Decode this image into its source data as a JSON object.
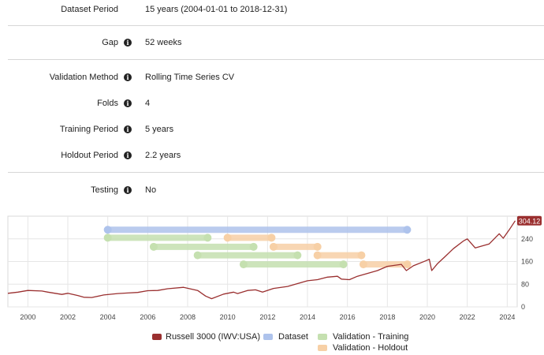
{
  "settings": {
    "dataset_period": {
      "label": "Dataset Period",
      "value": "15 years (2004-01-01 to 2018-12-31)"
    },
    "gap": {
      "label": "Gap",
      "value": "52 weeks"
    },
    "validation_method": {
      "label": "Validation Method",
      "value": "Rolling Time Series CV"
    },
    "folds": {
      "label": "Folds",
      "value": "4"
    },
    "training_period": {
      "label": "Training Period",
      "value": "5 years"
    },
    "holdout_period": {
      "label": "Holdout Period",
      "value": "2.2 years"
    },
    "testing": {
      "label": "Testing",
      "value": "No"
    }
  },
  "icons": {
    "info_glyph": "i"
  },
  "colors": {
    "price_line": "#9a2f2f",
    "dataset_bar": "#aec3ec",
    "training_bar": "#c5e0b0",
    "holdout_bar": "#f7d0a6"
  },
  "chart_data": {
    "type": "line",
    "title": "",
    "xlabel": "",
    "ylabel": "",
    "xlim": [
      1999.0,
      2024.5
    ],
    "ylim": [
      0,
      320
    ],
    "x_ticks": [
      "2000",
      "2002",
      "2004",
      "2006",
      "2008",
      "2010",
      "2012",
      "2014",
      "2016",
      "2018",
      "2020",
      "2022",
      "2024"
    ],
    "y_ticks": [
      "0",
      "80",
      "160",
      "240"
    ],
    "last_value_label": "304.12",
    "series": [
      {
        "name": "Russell 3000 (IWV:USA)",
        "x": [
          1999.0,
          1999.5,
          2000.0,
          2000.7,
          2001.0,
          2001.7,
          2002.0,
          2002.5,
          2002.8,
          2003.2,
          2003.8,
          2004.5,
          2005.0,
          2005.5,
          2006.0,
          2006.5,
          2007.0,
          2007.8,
          2008.5,
          2008.9,
          2009.2,
          2009.8,
          2010.3,
          2010.5,
          2011.0,
          2011.4,
          2011.75,
          2012.3,
          2013.0,
          2013.5,
          2014.0,
          2014.5,
          2015.0,
          2015.5,
          2015.7,
          2016.1,
          2016.5,
          2017.0,
          2017.5,
          2018.0,
          2018.7,
          2018.95,
          2019.3,
          2019.9,
          2020.1,
          2020.22,
          2020.5,
          2020.9,
          2021.3,
          2021.8,
          2022.0,
          2022.4,
          2022.8,
          2023.1,
          2023.6,
          2023.8,
          2024.1,
          2024.4
        ],
        "values": [
          48,
          52,
          58,
          56,
          52,
          44,
          48,
          40,
          34,
          33,
          42,
          47,
          49,
          51,
          57,
          58,
          64,
          69,
          58,
          38,
          29,
          45,
          52,
          47,
          58,
          60,
          52,
          65,
          72,
          82,
          92,
          96,
          105,
          108,
          98,
          96,
          108,
          118,
          128,
          143,
          150,
          128,
          145,
          162,
          168,
          128,
          152,
          178,
          205,
          232,
          240,
          208,
          216,
          222,
          258,
          242,
          272,
          304
        ]
      }
    ],
    "bars": [
      {
        "name": "Dataset",
        "start": 2004.0,
        "end": 2018.99,
        "y": 272
      },
      {
        "name": "Validation - Training",
        "start": 2004.0,
        "end": 2009.0,
        "y": 244
      },
      {
        "name": "Validation - Holdout",
        "start": 2010.0,
        "end": 2012.2,
        "y": 244
      },
      {
        "name": "Validation - Training",
        "start": 2006.3,
        "end": 2011.3,
        "y": 212
      },
      {
        "name": "Validation - Holdout",
        "start": 2012.3,
        "end": 2014.5,
        "y": 212
      },
      {
        "name": "Validation - Training",
        "start": 2008.5,
        "end": 2013.5,
        "y": 182
      },
      {
        "name": "Validation - Holdout",
        "start": 2014.5,
        "end": 2016.7,
        "y": 182
      },
      {
        "name": "Validation - Training",
        "start": 2010.8,
        "end": 2015.8,
        "y": 150
      },
      {
        "name": "Validation - Holdout",
        "start": 2016.8,
        "end": 2019.0,
        "y": 150
      }
    ],
    "legend": [
      "Russell 3000 (IWV:USA)",
      "Dataset",
      "Validation - Training",
      "Validation - Holdout"
    ]
  }
}
